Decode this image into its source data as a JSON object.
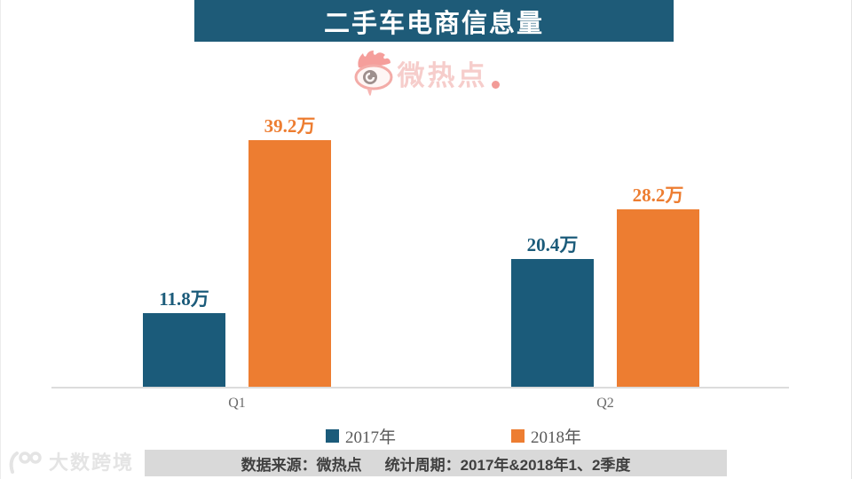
{
  "title": "二手车电商信息量",
  "brand_watermark": {
    "name": "微热点"
  },
  "chart_data": {
    "type": "bar",
    "title": "二手车电商信息量",
    "categories": [
      "Q1",
      "Q2"
    ],
    "series": [
      {
        "name": "2017年",
        "color": "#1B5B7A",
        "values": [
          11.8,
          20.4
        ]
      },
      {
        "name": "2018年",
        "color": "#ED7D31",
        "values": [
          39.2,
          28.2
        ]
      }
    ],
    "unit": "万",
    "data_labels": [
      [
        "11.8万",
        "20.4万"
      ],
      [
        "39.2万",
        "28.2万"
      ]
    ],
    "ylim": [
      0,
      40
    ],
    "grid": false,
    "legend_position": "bottom"
  },
  "legend": [
    {
      "label": "2017年",
      "color": "#1B5B7A"
    },
    {
      "label": "2018年",
      "color": "#ED7D31"
    }
  ],
  "footer": {
    "source": "数据来源：微热点",
    "period": "统计周期：2017年&2018年1、2季度"
  },
  "corner_watermark": {
    "text": "大数跨境"
  },
  "colors": {
    "title_bg": "#1E5B78",
    "title_text": "#FFFFFF",
    "axis": "#DCDCDC",
    "footer_bg": "#D9D9D9",
    "footer_text": "#404040",
    "brand_pink": "#F6CDCB"
  }
}
